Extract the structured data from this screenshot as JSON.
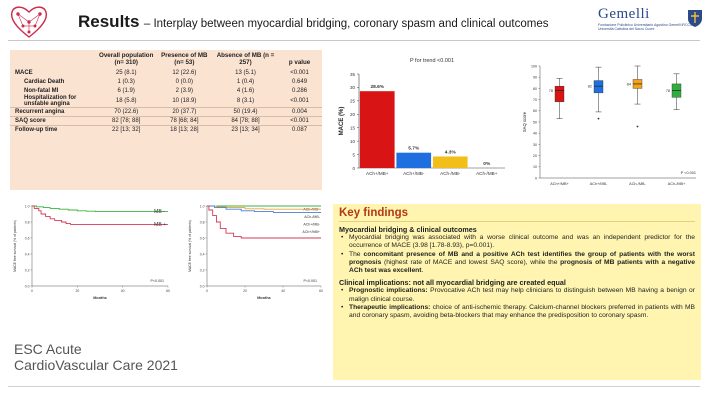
{
  "header": {
    "title": "Results",
    "subtitle": "– Interplay between myocardial bridging, coronary spasm and clinical outcomes",
    "brand": "Gemelli",
    "brand_tagline_1": "Fondazione Policlinico Universitario Agostino Gemelli IRCCS",
    "brand_tagline_2": "Università Cattolica del Sacro Cuore"
  },
  "table": {
    "headers": [
      "",
      "Overall population (n= 310)",
      "Presence of MB (n= 53)",
      "Absence of MB (n = 257)",
      "p value"
    ],
    "rows": [
      {
        "label": "MACE",
        "overall": "25 (8.1)",
        "mb": "12 (22.6)",
        "nomb": "13 (5.1)",
        "p": "<0.001",
        "style": "bold"
      },
      {
        "label": "Cardiac Death",
        "overall": "1 (0.3)",
        "mb": "0 (0.0)",
        "nomb": "1 (0.4)",
        "p": "0.649",
        "style": "sub"
      },
      {
        "label": "Non-fatal MI",
        "overall": "6 (1.9)",
        "mb": "2 (3.9)",
        "nomb": "4 (1.6)",
        "p": "0.286",
        "style": "sub"
      },
      {
        "label": "Hospitalization for unstable angina",
        "overall": "18 (5.8)",
        "mb": "10 (18.9)",
        "nomb": "8 (3.1)",
        "p": "<0.001",
        "style": "sub"
      },
      {
        "label": "Recurrent angina",
        "overall": "70 (22.6)",
        "mb": "20 (37.7)",
        "nomb": "50 (19.4)",
        "p": "0.004",
        "style": "bold"
      },
      {
        "label": "SAQ score",
        "overall": "82 [78; 88]",
        "mb": "78 [68; 84]",
        "nomb": "84 [78; 88]",
        "p": "<0.001",
        "style": "bold"
      },
      {
        "label": "Follow-up time",
        "overall": "22 [13; 32]",
        "mb": "18 [13; 28]",
        "nomb": "23 [13; 34]",
        "p": "0.087",
        "style": "bold"
      }
    ]
  },
  "chart_data": [
    {
      "type": "bar",
      "title": "P for trend <0.001",
      "ylabel": "MACE (%)",
      "ylim": [
        0,
        35
      ],
      "yticks": [
        0,
        5,
        10,
        15,
        20,
        25,
        30,
        35
      ],
      "categories": [
        "ACh+/MB+",
        "ACh+/MB-",
        "ACh-/MB-",
        "ACh-/MB+"
      ],
      "values": [
        28.6,
        5.7,
        4.3,
        0
      ],
      "value_labels": [
        "28.6%",
        "5.7%",
        "4.3%",
        "0%"
      ],
      "colors": [
        "#d81414",
        "#1f6fe0",
        "#f2bf1a",
        "#2fae3e"
      ]
    },
    {
      "type": "box",
      "ylabel": "SAQ score",
      "ylim": [
        0,
        100
      ],
      "yticks": [
        0,
        10,
        20,
        30,
        40,
        50,
        60,
        70,
        80,
        90,
        100
      ],
      "categories": [
        "ACh+/MB+",
        "ACh+/MB-",
        "ACh-/MB-",
        "ACh-/MB+"
      ],
      "medians": [
        78,
        82,
        84,
        78
      ],
      "median_labels": [
        "78",
        "82",
        "84",
        "78"
      ],
      "q1": [
        68,
        76,
        80,
        72
      ],
      "q3": [
        82,
        87,
        88,
        84
      ],
      "whisker_low": [
        53,
        59,
        66,
        61
      ],
      "whisker_high": [
        89,
        99,
        100,
        93
      ],
      "outliers": [
        [],
        [
          53
        ],
        [
          46
        ],
        []
      ],
      "colors": [
        "#d81414",
        "#1f6fe0",
        "#f2a31a",
        "#2fae3e"
      ],
      "annotation": "P <0.001"
    },
    {
      "type": "line",
      "ylabel": "MACE free survival (% of patients)",
      "xlabel": "Months",
      "ylim": [
        0,
        1.0
      ],
      "xlim": [
        0,
        60
      ],
      "yticks": [
        0,
        0.2,
        0.4,
        0.6,
        0.8,
        1.0
      ],
      "xticks": [
        0,
        20,
        40,
        60
      ],
      "annotation": "P<0.001",
      "series": [
        {
          "name": "MB -",
          "color": "#3db33d",
          "points": [
            [
              0,
              1
            ],
            [
              2,
              0.99
            ],
            [
              5,
              0.98
            ],
            [
              8,
              0.97
            ],
            [
              12,
              0.96
            ],
            [
              16,
              0.95
            ],
            [
              20,
              0.94
            ],
            [
              24,
              0.935
            ],
            [
              28,
              0.93
            ],
            [
              40,
              0.93
            ],
            [
              60,
              0.93
            ]
          ]
        },
        {
          "name": "MB +",
          "color": "#d43a55",
          "points": [
            [
              0,
              1
            ],
            [
              1,
              0.97
            ],
            [
              3,
              0.94
            ],
            [
              4,
              0.9
            ],
            [
              6,
              0.87
            ],
            [
              8,
              0.84
            ],
            [
              10,
              0.82
            ],
            [
              13,
              0.8
            ],
            [
              15,
              0.78
            ],
            [
              17,
              0.77
            ],
            [
              20,
              0.77
            ],
            [
              60,
              0.77
            ]
          ]
        }
      ]
    },
    {
      "type": "line",
      "ylabel": "MACE free survival (% of patients)",
      "xlabel": "Months",
      "ylim": [
        0,
        1.0
      ],
      "xlim": [
        0,
        60
      ],
      "yticks": [
        0,
        0.2,
        0.4,
        0.6,
        0.8,
        1.0
      ],
      "xticks": [
        0,
        20,
        40,
        60
      ],
      "annotation": "P<0.001",
      "series": [
        {
          "name": "ACh-/MB+",
          "color": "#3db33d",
          "points": [
            [
              0,
              1
            ],
            [
              60,
              1
            ]
          ]
        },
        {
          "name": "ACh-/MB-",
          "color": "#e8a33a",
          "points": [
            [
              0,
              1
            ],
            [
              5,
              0.99
            ],
            [
              10,
              0.98
            ],
            [
              20,
              0.965
            ],
            [
              30,
              0.96
            ],
            [
              60,
              0.96
            ]
          ]
        },
        {
          "name": "ACh+/MB-",
          "color": "#4a7fd8",
          "points": [
            [
              0,
              1
            ],
            [
              4,
              0.98
            ],
            [
              10,
              0.96
            ],
            [
              18,
              0.94
            ],
            [
              25,
              0.93
            ],
            [
              35,
              0.92
            ],
            [
              60,
              0.92
            ]
          ]
        },
        {
          "name": "ACh+/MB+",
          "color": "#d43a55",
          "points": [
            [
              0,
              1
            ],
            [
              1,
              0.95
            ],
            [
              3,
              0.88
            ],
            [
              5,
              0.8
            ],
            [
              7,
              0.72
            ],
            [
              10,
              0.66
            ],
            [
              14,
              0.62
            ],
            [
              18,
              0.6
            ],
            [
              60,
              0.6
            ]
          ]
        }
      ]
    }
  ],
  "findings": {
    "title": "Key findings",
    "section1_title": "Myocardial bridging & clinical outcomes",
    "b1": "Myocardial bridging was associated with a worse clinical outcome and was an independent predictor for the occurrence of MACE (3.98 [1.78-8.93), p=0.001).",
    "b2_a": "The ",
    "b2_b": "concomitant presence of MB and a positive ACh test identifies the group of patients with the worst prognosis",
    "b2_c": " (highest rate of MACE and lowest SAQ score), while the ",
    "b2_d": "prognosis of MB patients with a negative ACh test was excellent",
    "b2_e": ".",
    "section2_title": "Clinical implications: not all myocardial bridging are created equal",
    "b3_a": "Prognostic implications:",
    "b3_b": " Provocative ACh test may help clinicians to distinguish between MB having a benign or malign clinical course.",
    "b4_a": "Therapeutic implications:",
    "b4_b": " choice of anti-ischemic therapy. Calcium-channel blockers preferred in patients with MB and coronary spasm, avoiding beta-blockers that may enhance the predisposition to coronary spasm."
  },
  "footer": {
    "line1": "ESC Acute",
    "line2": "CardioVascular Care 2021"
  }
}
